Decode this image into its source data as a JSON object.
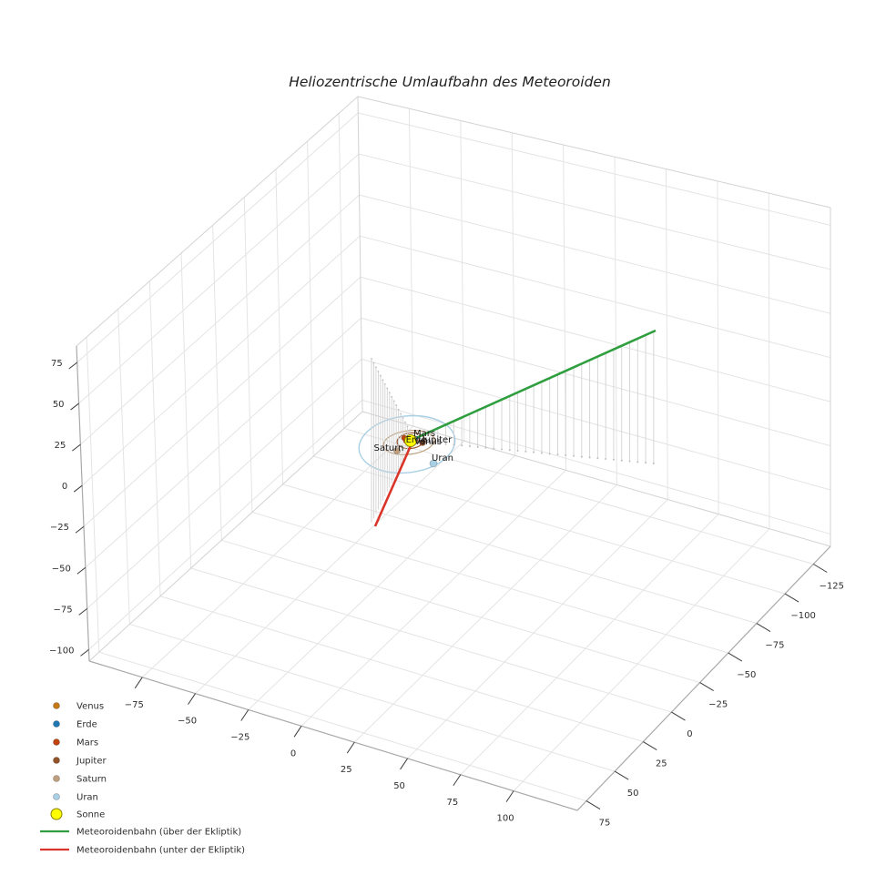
{
  "title": "Heliozentrische Umlaufbahn des Meteoroiden",
  "chart_data": {
    "type": "line",
    "projection": "3d",
    "title": "Heliozentrische Umlaufbahn des Meteoroiden",
    "grid": true,
    "legend_position": "lower left",
    "x_ticks": [
      -75,
      -50,
      -25,
      0,
      25,
      50,
      75,
      100
    ],
    "y_ticks": [
      -125,
      -100,
      -75,
      -50,
      -25,
      0,
      25,
      50,
      75
    ],
    "z_ticks": [
      75,
      50,
      25,
      0,
      -25,
      -50,
      -75,
      -100
    ],
    "x_range": [
      -100,
      130
    ],
    "y_range": [
      -140,
      83
    ],
    "z_range": [
      -107,
      85
    ],
    "planets": [
      {
        "name": "Venus",
        "color": "#c67817"
      },
      {
        "name": "Erde",
        "color": "#1f77b4"
      },
      {
        "name": "Mars",
        "color": "#c1440e"
      },
      {
        "name": "Jupiter",
        "color": "#945229"
      },
      {
        "name": "Saturn",
        "color": "#bfa07e"
      },
      {
        "name": "Uran",
        "color": "#a9cfe4"
      }
    ],
    "sun": {
      "name": "Sonne",
      "color": "#ffff00",
      "edge": "#8b8000"
    },
    "series": [
      {
        "name": "Meteoroidenbahn (über der Ekliptik)",
        "color": "#2f9e3e",
        "style": "solid",
        "description": "trajectory above ecliptic plane, rises from Sun toward far corner with vertical stems down to ecliptic"
      },
      {
        "name": "Meteoroidenbahn (unter der Ekliptik)",
        "color": "#d9352a",
        "style": "solid",
        "description": "trajectory below ecliptic plane, descends from Sun with vertical stems up to ecliptic"
      }
    ]
  },
  "legend": {
    "items": [
      {
        "label": "Venus",
        "marker": "dot",
        "color": "#c67817"
      },
      {
        "label": "Erde",
        "marker": "dot",
        "color": "#1f77b4"
      },
      {
        "label": "Mars",
        "marker": "dot",
        "color": "#c1440e"
      },
      {
        "label": "Jupiter",
        "marker": "dot",
        "color": "#945229"
      },
      {
        "label": "Saturn",
        "marker": "dot",
        "color": "#bfa07e"
      },
      {
        "label": "Uran",
        "marker": "dot",
        "color": "#a9cfe4"
      },
      {
        "label": "Sonne",
        "marker": "dot-large",
        "color": "#ffff00",
        "edge": "#8b8000"
      },
      {
        "label": "Meteoroidenbahn (über der Ekliptik)",
        "marker": "line",
        "color": "#2f9e3e"
      },
      {
        "label": "Meteoroidenbahn (unter der Ekliptik)",
        "marker": "line",
        "color": "#d9352a"
      }
    ]
  }
}
